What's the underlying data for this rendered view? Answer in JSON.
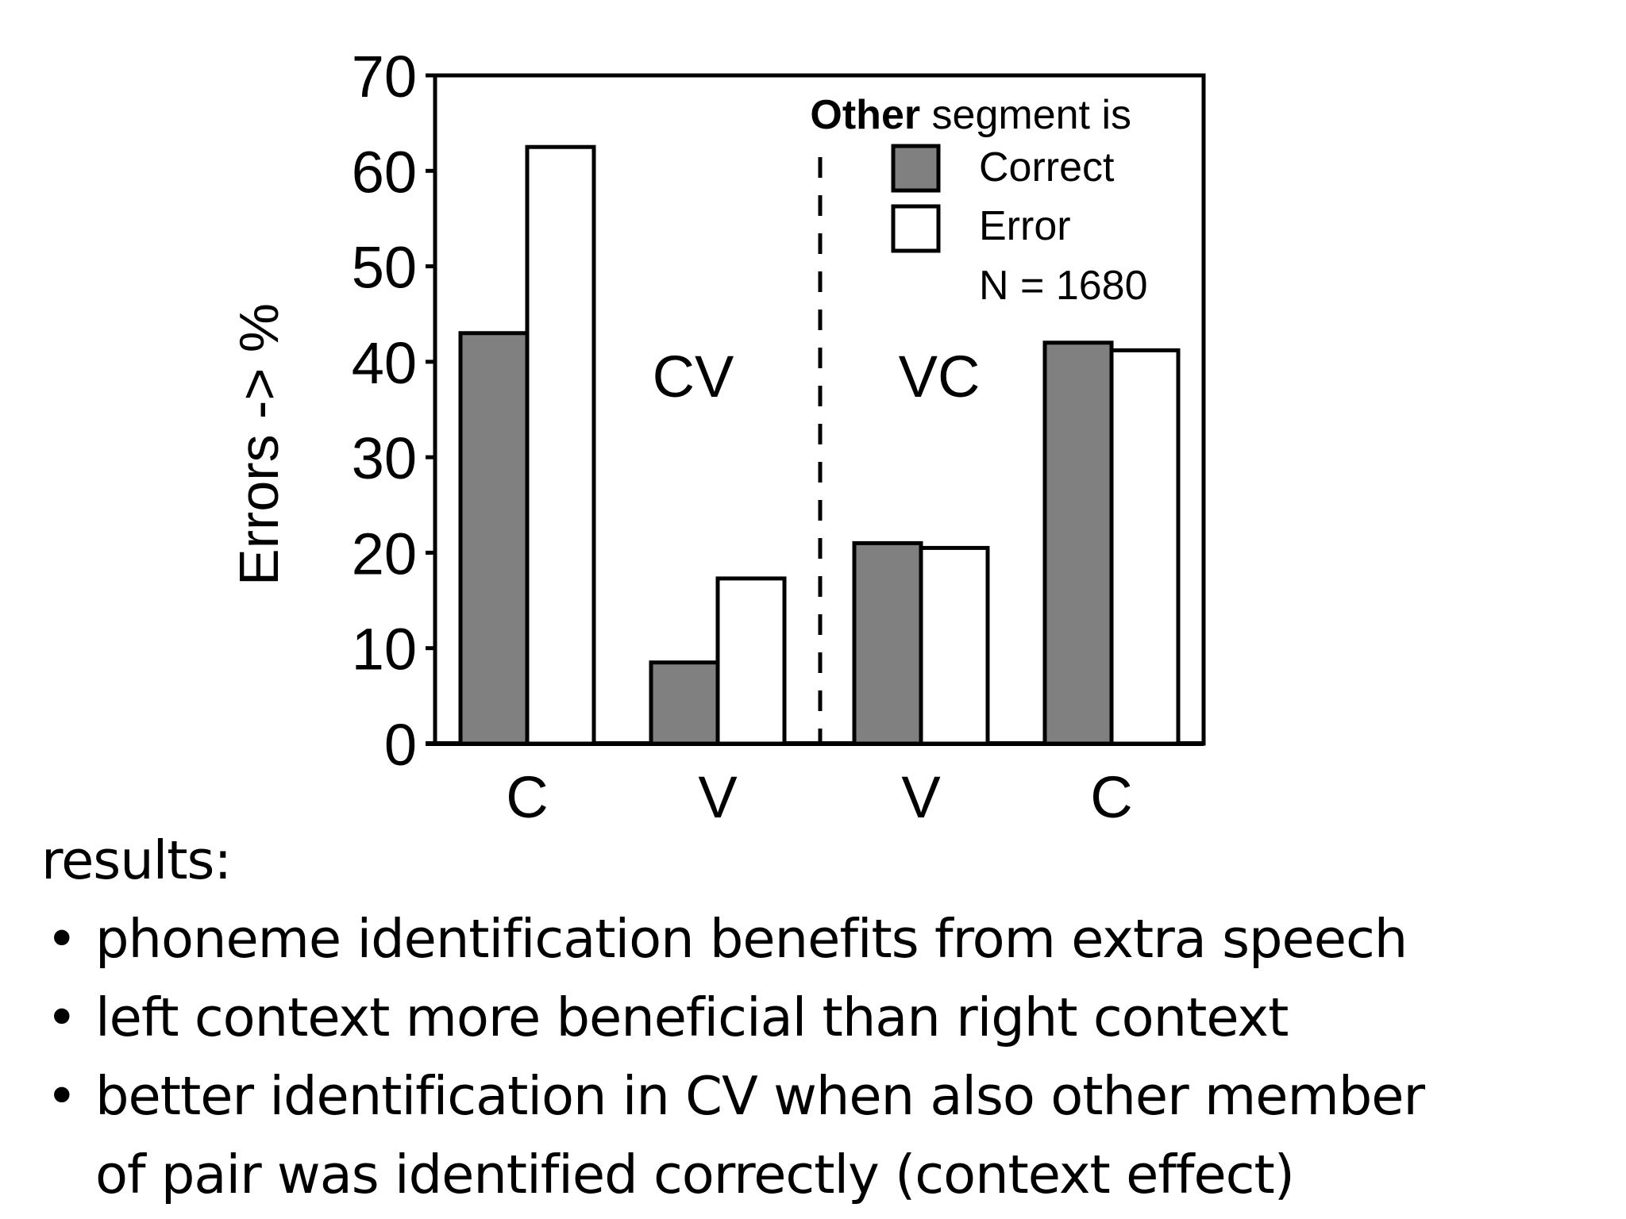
{
  "chart_data": {
    "type": "bar",
    "ylabel": "Errors -> %",
    "ylim": [
      0,
      70
    ],
    "yticks": [
      0,
      10,
      20,
      30,
      40,
      50,
      60,
      70
    ],
    "categories": [
      "C",
      "V",
      "V",
      "C"
    ],
    "groups": [
      {
        "label": "CV",
        "categories": [
          0,
          1
        ]
      },
      {
        "label": "VC",
        "categories": [
          2,
          3
        ]
      }
    ],
    "series": [
      {
        "name": "Correct",
        "color": "#808080",
        "values": [
          43,
          8.5,
          21,
          42
        ]
      },
      {
        "name": "Error",
        "color": "#ffffff",
        "values": [
          62.5,
          17.3,
          20.5,
          41.2
        ]
      }
    ],
    "legend": {
      "title_bold": "Other",
      "title_rest": " segment is",
      "note": "N = 1680",
      "placement": "top-right"
    },
    "grid": false
  },
  "results": {
    "heading": "results:",
    "bullet_symbol": "•",
    "items": [
      {
        "text": "phoneme identification benefits from extra speech"
      },
      {
        "text": "left context more beneficial than right context"
      },
      {
        "text": "better identification in CV when also other member",
        "continuation": "of pair was identified correctly (context effect)"
      }
    ]
  }
}
